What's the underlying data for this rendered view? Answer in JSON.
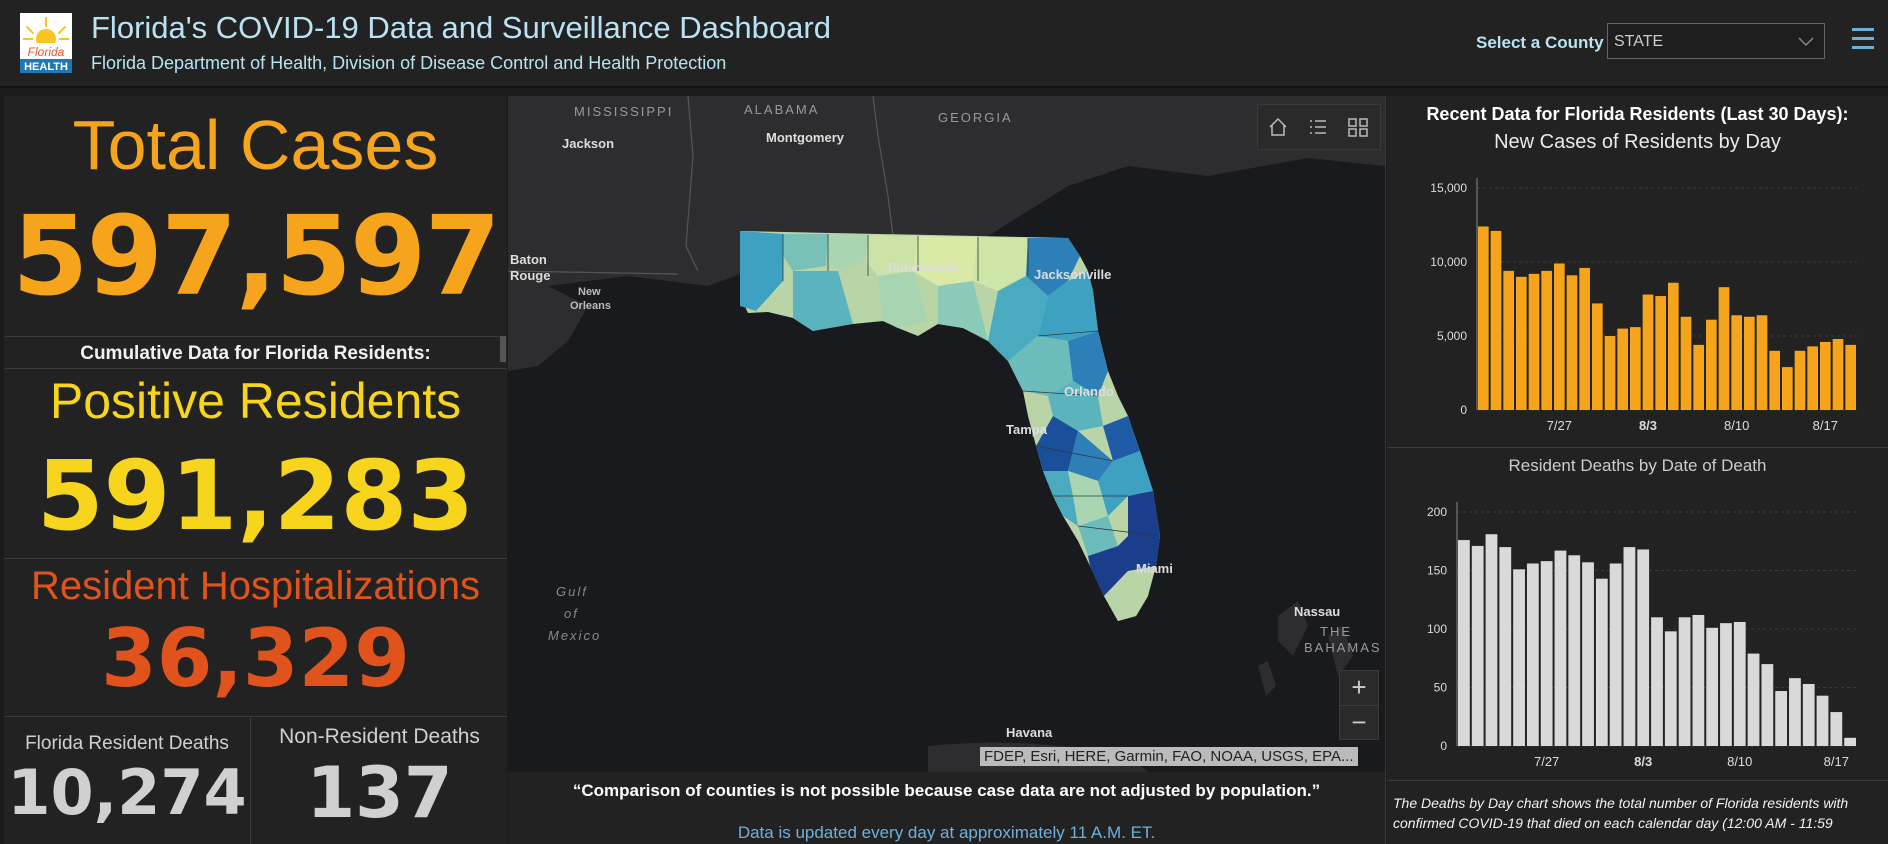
{
  "header": {
    "title": "Florida's COVID-19 Data and Surveillance Dashboard",
    "subtitle": "Florida Department of Health, Division of Disease Control and Health Protection",
    "logo_text": "Florida HEALTH",
    "county_label": "Select a County",
    "county_value": "STATE"
  },
  "stats": {
    "total_cases_label": "Total Cases",
    "total_cases": "597,597",
    "cumulative_label": "Cumulative Data for Florida Residents:",
    "positive_label": "Positive Residents",
    "positive": "591,283",
    "hosp_label": "Resident Hospitalizations",
    "hosp": "36,329",
    "deaths_label": "Florida Resident Deaths",
    "deaths": "10,274",
    "nonres_label": "Non-Resident Deaths",
    "nonres": "137"
  },
  "map": {
    "labels": {
      "mississippi": "MISSISSIPPI",
      "alabama": "ALABAMA",
      "georgia": "GEORGIA",
      "jackson": "Jackson",
      "montgomery": "Montgomery",
      "baton_rouge_1": "Baton",
      "baton_rouge_2": "Rouge",
      "new_orleans_1": "New",
      "new_orleans_2": "Orleans",
      "tallahassee": "Tallahassee",
      "jacksonville": "Jacksonville",
      "orlando": "Orlando",
      "tampa": "Tampa",
      "miami": "Miami",
      "gulf_1": "Gulf",
      "gulf_2": "of",
      "gulf_3": "Mexico",
      "nassau": "Nassau",
      "bahamas_1": "THE",
      "bahamas_2": "BAHAMAS",
      "havana": "Havana"
    },
    "attribution": "FDEP, Esri, HERE, Garmin, FAO, NOAA, USGS, EPA...",
    "tools": [
      "home-icon",
      "legend-icon",
      "basemap-icon"
    ],
    "zoom_in": "+",
    "zoom_out": "−"
  },
  "footer": {
    "quote": "“Comparison of counties is not possible because case data are not adjusted by population.”",
    "update_note": "Data is updated every day at approximately 11 A.M. ET."
  },
  "right": {
    "recent_label": "Recent Data for Florida Residents (Last 30 Days):",
    "chart1_title": "New Cases of Residents by Day",
    "chart2_title": "Resident Deaths by Date of Death",
    "deaths_note": "The Deaths by Day chart shows the total number of Florida residents with confirmed COVID-19 that died on each calendar day (12:00 AM - 11:59"
  },
  "colors": {
    "cases": "#f7a41d",
    "positive": "#f7d51d",
    "hosp": "#e1531c",
    "deaths_bar": "#d9d9d9",
    "title_blue": "#b9e3f3"
  },
  "chart_data": [
    {
      "type": "bar",
      "title": "New Cases of Residents by Day",
      "ylim": [
        0,
        15000
      ],
      "yticks": [
        "0",
        "5,000",
        "10,000",
        "15,000"
      ],
      "xticks": [
        "7/27",
        "8/3",
        "8/10",
        "8/17"
      ],
      "values": [
        12400,
        12100,
        9400,
        9000,
        9200,
        9400,
        9900,
        9100,
        9600,
        7200,
        5000,
        5500,
        5600,
        7800,
        7700,
        8600,
        6300,
        4400,
        6100,
        8300,
        6400,
        6300,
        6400,
        4000,
        2900,
        4000,
        4300,
        4600,
        4800,
        4400
      ]
    },
    {
      "type": "bar",
      "title": "Resident Deaths by Date of Death",
      "ylim": [
        0,
        200
      ],
      "yticks": [
        "0",
        "50",
        "100",
        "150",
        "200"
      ],
      "xticks": [
        "7/27",
        "8/3",
        "8/10",
        "8/17"
      ],
      "values": [
        176,
        171,
        181,
        170,
        151,
        156,
        158,
        167,
        163,
        157,
        143,
        156,
        170,
        168,
        110,
        98,
        110,
        112,
        101,
        105,
        106,
        79,
        70,
        47,
        58,
        53,
        43,
        29,
        7
      ]
    }
  ]
}
